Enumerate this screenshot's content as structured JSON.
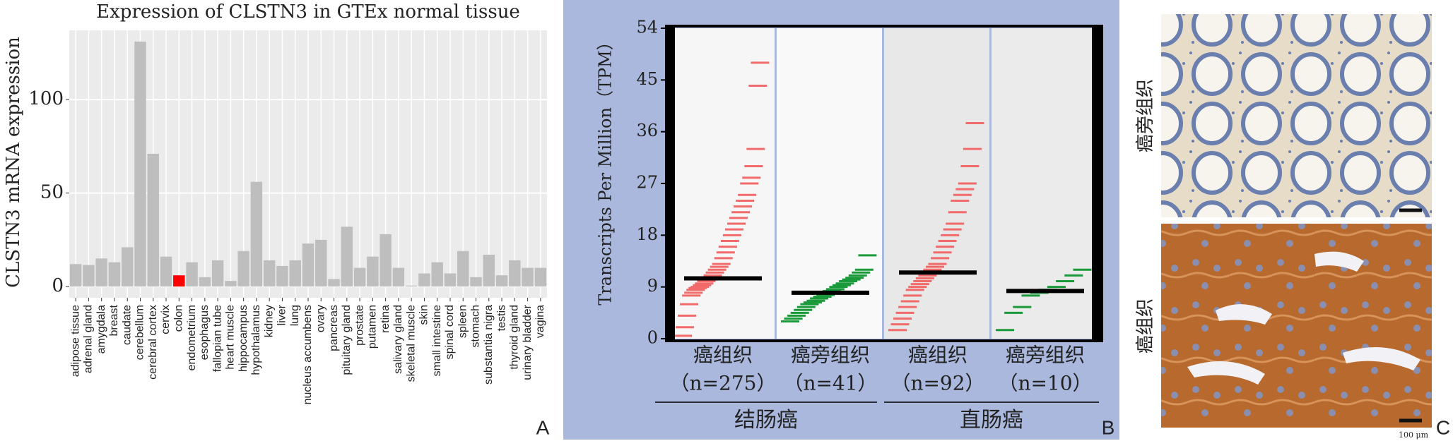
{
  "chart_data": [
    {
      "type": "bar",
      "panel_label": "A",
      "title": "Expression of CLSTN3 in GTEx normal tissue",
      "y_label": "CLSTN3 mRNA expression",
      "categories": [
        "adipose tissue",
        "adrenal gland",
        "amygdala",
        "breast",
        "caudate",
        "cerebellum",
        "cerebral cortex",
        "cervix",
        "colon",
        "endometrium",
        "esophagus",
        "fallopian tube",
        "heart muscle",
        "hippocampus",
        "hypothalamus",
        "kidney",
        "liver",
        "lung",
        "nucleus accumbens",
        "ovary",
        "pancreas",
        "pituitary gland",
        "prostate",
        "putamen",
        "retina",
        "salivary gland",
        "skeletal muscle",
        "skin",
        "small intestine",
        "spinal cord",
        "spleen",
        "stomach",
        "substantia nigra",
        "testis",
        "thyroid gland",
        "urinary bladder",
        "vagina"
      ],
      "values": [
        12,
        11.5,
        15,
        13,
        21,
        131,
        71,
        16,
        6,
        13,
        5,
        14,
        3,
        19,
        56,
        14,
        11,
        14,
        23,
        25,
        4,
        32,
        10,
        16,
        28,
        10,
        0.5,
        7,
        13,
        7,
        19,
        5,
        17,
        6,
        14,
        10,
        10
      ],
      "colors": [
        "#bebebe",
        "#bebebe",
        "#bebebe",
        "#bebebe",
        "#bebebe",
        "#bebebe",
        "#bebebe",
        "#bebebe",
        "#ff0000",
        "#bebebe",
        "#bebebe",
        "#bebebe",
        "#bebebe",
        "#bebebe",
        "#bebebe",
        "#bebebe",
        "#bebebe",
        "#bebebe",
        "#bebebe",
        "#bebebe",
        "#bebebe",
        "#bebebe",
        "#bebebe",
        "#bebebe",
        "#bebebe",
        "#bebebe",
        "#bebebe",
        "#bebebe",
        "#bebebe",
        "#bebebe",
        "#bebebe",
        "#bebebe",
        "#bebebe",
        "#bebebe",
        "#bebebe",
        "#bebebe",
        "#bebebe"
      ],
      "ylim": [
        -6,
        137
      ],
      "yticks": [
        0,
        50,
        100
      ],
      "grid": true
    },
    {
      "type": "strip",
      "panel_label": "B",
      "y_label": "Transcripts Per Million（TPM）",
      "ylim": [
        0,
        54
      ],
      "yticks": [
        0,
        9,
        18,
        27,
        36,
        45,
        54
      ],
      "groups": [
        {
          "label": "癌组织",
          "n_label": "（n=275）",
          "color": "#f26b6b",
          "median": 10.5,
          "values": [
            0.5,
            2,
            4,
            6,
            7.5,
            8,
            8.5,
            8.8,
            9,
            9.3,
            9.6,
            10,
            10.3,
            10.6,
            11,
            11.5,
            12,
            12.5,
            13,
            14,
            15,
            16,
            17,
            18,
            19,
            20,
            21,
            22,
            23,
            24,
            25,
            27,
            28,
            30,
            33,
            44,
            48
          ]
        },
        {
          "label": "癌旁组织",
          "n_label": "（n=41）",
          "color": "#1a9a3a",
          "median": 8,
          "values": [
            3,
            3.5,
            4,
            4.5,
            5,
            5.5,
            6,
            6.3,
            6.6,
            7,
            7.3,
            7.6,
            8,
            8.3,
            8.6,
            9,
            9.3,
            9.6,
            10,
            10.3,
            10.6,
            11,
            11.5,
            12,
            14.5
          ]
        },
        {
          "label": "癌组织",
          "n_label": "（n=92）",
          "color": "#f26b6b",
          "median": 11.5,
          "values": [
            1.5,
            2.5,
            3.5,
            4.5,
            5.5,
            6.5,
            7.5,
            8.5,
            9,
            9.5,
            10,
            10.5,
            11,
            11.5,
            12,
            12.5,
            13,
            14,
            15,
            16,
            17,
            18,
            19,
            20,
            22,
            24,
            25,
            26,
            27,
            30,
            33,
            37.5
          ]
        },
        {
          "label": "癌旁组织",
          "n_label": "（n=10）",
          "color": "#1a9a3a",
          "median": 8.3,
          "values": [
            1.5,
            4.5,
            5.5,
            7.5,
            8,
            8.5,
            9,
            10,
            11,
            12
          ]
        }
      ],
      "group_sets": [
        "结肠癌",
        "直肠癌"
      ]
    }
  ],
  "panel_c": {
    "panel_label": "C",
    "top_label": "癌旁组织",
    "bottom_label": "癌组织",
    "scale_label": "100 μm"
  }
}
